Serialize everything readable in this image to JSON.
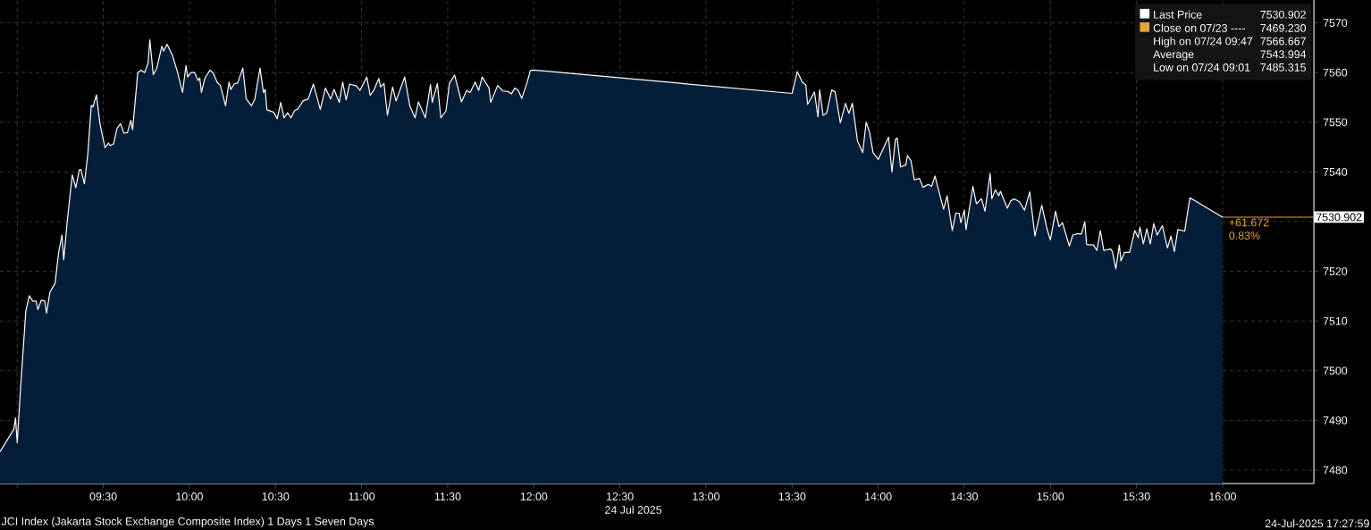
{
  "chart_data": {
    "type": "area",
    "xlabel": "24 Jul 2025",
    "xlim": [
      8.9,
      16.53
    ],
    "xticks": [
      {
        "value": 9.0,
        "label": null
      },
      {
        "value": 9.5,
        "label": "09:30"
      },
      {
        "value": 10.0,
        "label": "10:00"
      },
      {
        "value": 10.5,
        "label": "10:30"
      },
      {
        "value": 11.0,
        "label": "11:00"
      },
      {
        "value": 11.5,
        "label": "11:30"
      },
      {
        "value": 12.0,
        "label": "12:00"
      },
      {
        "value": 12.5,
        "label": "12:30"
      },
      {
        "value": 13.0,
        "label": "13:00"
      },
      {
        "value": 13.5,
        "label": "13:30"
      },
      {
        "value": 14.0,
        "label": "14:00"
      },
      {
        "value": 14.5,
        "label": "14:30"
      },
      {
        "value": 15.0,
        "label": "15:00"
      },
      {
        "value": 15.5,
        "label": "15:30"
      },
      {
        "value": 16.0,
        "label": "16:00"
      }
    ],
    "ylim": [
      7477.3,
      7574.6
    ],
    "yticks": [
      7480,
      7490,
      7500,
      7510,
      7520,
      {
        "value": 7530,
        "label": null
      },
      7540,
      7550,
      7560,
      7570
    ],
    "grid": true,
    "legend": "top right",
    "series": [
      {
        "name": "Last Price",
        "color": "#ffffff",
        "x": [
          8.9,
          8.98,
          8.99,
          9.0,
          9.02,
          9.05,
          9.07,
          9.09,
          9.11,
          9.12,
          9.14,
          9.16,
          9.17,
          9.19,
          9.22,
          9.24,
          9.26,
          9.27,
          9.29,
          9.31,
          9.32,
          9.34,
          9.36,
          9.37,
          9.39,
          9.41,
          9.43,
          9.44,
          9.46,
          9.48,
          9.49,
          9.51,
          9.53,
          9.54,
          9.56,
          9.58,
          9.6,
          9.62,
          9.64,
          9.66,
          9.67,
          9.7,
          9.72,
          9.74,
          9.76,
          9.77,
          9.79,
          9.81,
          9.84,
          9.85,
          9.87,
          9.9,
          9.93,
          9.96,
          9.98,
          9.99,
          10.01,
          10.03,
          10.05,
          10.06,
          10.07,
          10.09,
          10.12,
          10.14,
          10.16,
          10.18,
          10.21,
          10.23,
          10.24,
          10.26,
          10.28,
          10.31,
          10.33,
          10.36,
          10.38,
          10.41,
          10.43,
          10.44,
          10.45,
          10.49,
          10.51,
          10.53,
          10.55,
          10.57,
          10.59,
          10.61,
          10.63,
          10.66,
          10.69,
          10.72,
          10.76,
          10.79,
          10.82,
          10.84,
          10.87,
          10.89,
          10.91,
          10.93,
          10.97,
          10.99,
          11.03,
          11.05,
          11.07,
          11.1,
          11.11,
          11.13,
          11.15,
          11.18,
          11.2,
          11.25,
          11.28,
          11.31,
          11.33,
          11.37,
          11.4,
          11.41,
          11.44,
          11.46,
          11.49,
          11.51,
          11.54,
          11.58,
          11.61,
          11.63,
          11.66,
          11.68,
          11.7,
          11.74,
          11.75,
          11.79,
          11.82,
          11.85,
          11.87,
          11.89,
          11.91,
          11.93,
          11.96,
          11.98,
          12.0,
          13.5,
          13.53,
          13.56,
          13.58,
          13.59,
          13.63,
          13.65,
          13.66,
          13.68,
          13.7,
          13.73,
          13.75,
          13.78,
          13.81,
          13.83,
          13.85,
          13.88,
          13.91,
          13.93,
          13.95,
          13.97,
          14.0,
          14.06,
          14.08,
          14.1,
          14.11,
          14.13,
          14.16,
          14.17,
          14.19,
          14.21,
          14.24,
          14.26,
          14.29,
          14.31,
          14.33,
          14.35,
          14.38,
          14.4,
          14.43,
          14.45,
          14.47,
          14.48,
          14.5,
          14.51,
          14.55,
          14.57,
          14.6,
          14.62,
          14.65,
          14.66,
          14.68,
          14.7,
          14.71,
          14.75,
          14.77,
          14.79,
          14.82,
          14.85,
          14.88,
          14.91,
          14.95,
          14.98,
          15.0,
          15.03,
          15.05,
          15.07,
          15.11,
          15.13,
          15.16,
          15.18,
          15.2,
          15.21,
          15.25,
          15.27,
          15.29,
          15.31,
          15.35,
          15.36,
          15.38,
          15.4,
          15.41,
          15.43,
          15.46,
          15.49,
          15.51,
          15.52,
          15.54,
          15.56,
          15.58,
          15.6,
          15.62,
          15.65,
          15.68,
          15.7,
          15.72,
          15.74,
          15.78,
          15.81,
          16.0
        ],
        "values": [
          7483.7,
          7488.2,
          7490.5,
          7485.5,
          7496.8,
          7512.0,
          7515.1,
          7514.0,
          7514.0,
          7512.3,
          7514.2,
          7514.0,
          7511.6,
          7515.8,
          7517.6,
          7523.7,
          7527.3,
          7522.3,
          7529.9,
          7536.4,
          7539.4,
          7536.8,
          7540.4,
          7540.5,
          7537.6,
          7543.6,
          7553.4,
          7553.1,
          7555.5,
          7549.8,
          7548.1,
          7544.9,
          7545.8,
          7545.3,
          7545.7,
          7548.8,
          7549.7,
          7547.8,
          7547.9,
          7550.4,
          7548.5,
          7560.0,
          7560.5,
          7560.0,
          7561.9,
          7566.6,
          7559.6,
          7560.8,
          7565.3,
          7564.3,
          7565.7,
          7563.6,
          7560.2,
          7556.0,
          7561.4,
          7559.1,
          7560.0,
          7560.0,
          7558.4,
          7558.9,
          7556.0,
          7558.9,
          7560.5,
          7559.8,
          7558.1,
          7557.4,
          7553.3,
          7558.1,
          7556.6,
          7557.7,
          7557.9,
          7560.9,
          7554.7,
          7553.3,
          7554.7,
          7560.9,
          7556.0,
          7556.6,
          7552.5,
          7552.0,
          7550.7,
          7554.0,
          7550.9,
          7551.9,
          7550.9,
          7552.3,
          7552.7,
          7554.3,
          7554.7,
          7557.7,
          7552.6,
          7556.9,
          7554.7,
          7556.6,
          7554.0,
          7558.1,
          7554.5,
          7557.7,
          7557.3,
          7556.4,
          7559.1,
          7555.4,
          7556.4,
          7558.8,
          7557.1,
          7557.8,
          7551.4,
          7557.1,
          7554.3,
          7559.1,
          7553.3,
          7550.9,
          7554.1,
          7550.9,
          7557.6,
          7554.0,
          7557.8,
          7550.9,
          7552.3,
          7557.8,
          7559.5,
          7554.1,
          7556.4,
          7556.0,
          7558.1,
          7556.4,
          7559.1,
          7556.9,
          7554.0,
          7557.4,
          7556.3,
          7556.2,
          7555.7,
          7556.9,
          7556.4,
          7554.8,
          7557.9,
          7560.4,
          7560.5,
          7555.8,
          7560.2,
          7558.0,
          7557.5,
          7553.6,
          7556.1,
          7551.1,
          7556.5,
          7551.4,
          7551.8,
          7556.5,
          7556.1,
          7549.9,
          7553.8,
          7551.8,
          7553.8,
          7546.2,
          7543.9,
          7550.0,
          7548.0,
          7543.9,
          7542.5,
          7547.0,
          7540.0,
          7546.6,
          7546.8,
          7541.0,
          7541.4,
          7543.3,
          7542.3,
          7538.4,
          7538.7,
          7536.9,
          7537.5,
          7537.1,
          7539.2,
          7536.4,
          7532.5,
          7535.2,
          7528.2,
          7531.7,
          7531.7,
          7529.8,
          7532.3,
          7528.4,
          7537.1,
          7533.6,
          7534.6,
          7532.1,
          7539.7,
          7534.6,
          7536.4,
          7535.2,
          7536.1,
          7532.7,
          7534.2,
          7534.6,
          7534.0,
          7532.3,
          7536.0,
          7527.1,
          7533.3,
          7528.6,
          7526.3,
          7532.1,
          7529.0,
          7529.8,
          7525.1,
          7527.3,
          7527.6,
          7527.5,
          7530.0,
          7525.4,
          7525.3,
          7524.2,
          7528.2,
          7524.2,
          7524.5,
          7524.0,
          7520.5,
          7525.3,
          7522.1,
          7523.8,
          7523.8,
          7528.2,
          7526.8,
          7528.9,
          7525.5,
          7528.6,
          7525.5,
          7529.6,
          7527.3,
          7529.2,
          7524.7,
          7527.1,
          7524.0,
          7528.4,
          7528.1,
          7534.8,
          7530.902
        ]
      }
    ],
    "ref_lines": [
      {
        "axis": "y",
        "value": 7530.902,
        "label": "7530.902",
        "color": "#e8a33d"
      }
    ],
    "annotations": [
      "7530.902",
      "Close on 07/23 ----",
      "7469.230",
      "High on 07/24 09:47",
      "7566.667",
      "Average",
      "7543.994",
      "Low on 07/24 09:01",
      "7485.315",
      "+61.672",
      "0.83%",
      "JCI Index (Jakarta Stock Exchange Composite Index) 1 Days 1 Seven Days",
      "24-Jul-2025 17:27:59"
    ]
  }
}
